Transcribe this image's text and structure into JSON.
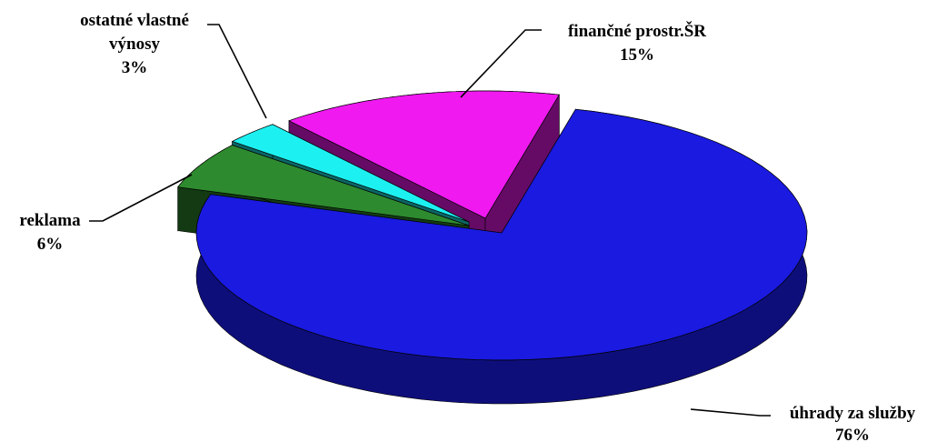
{
  "chart_data": {
    "type": "pie",
    "title": "",
    "slices": [
      {
        "label": "úhrady za služby",
        "value": 76,
        "value_label": "76%",
        "color": "#1a1ae0"
      },
      {
        "label": "reklama",
        "value": 6,
        "value_label": "6%",
        "color": "#2e8a2e"
      },
      {
        "label": "ostatné vlastné výnosy",
        "value": 3,
        "value_label": "3%",
        "color": "#1df0f0"
      },
      {
        "label": "finančné prostr.ŠR",
        "value": 15,
        "value_label": "15%",
        "color": "#f019f0"
      }
    ],
    "legend": "none",
    "three_d": true
  }
}
